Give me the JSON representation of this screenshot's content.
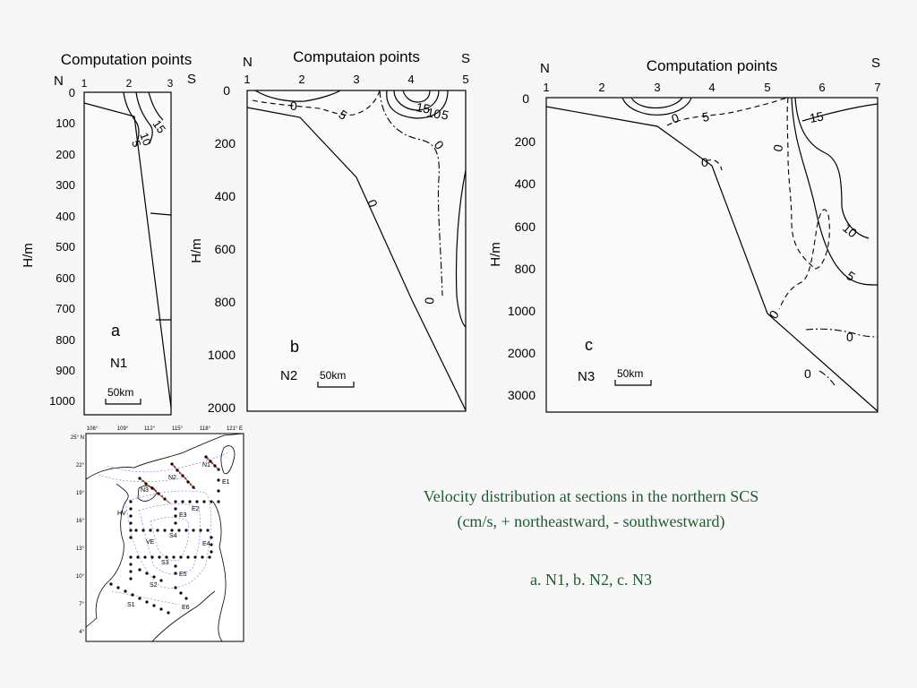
{
  "panels": {
    "a": {
      "title": "Computation points",
      "north": "N",
      "south": "S",
      "xticks": [
        "1",
        "2",
        "3"
      ],
      "yticks": [
        "0",
        "100",
        "200",
        "300",
        "400",
        "500",
        "600",
        "700",
        "800",
        "900",
        "1000"
      ],
      "ylabel": "H/m",
      "letter": "a",
      "section": "N1",
      "scale": "50km",
      "contours": [
        "15",
        "10",
        "5"
      ]
    },
    "b": {
      "title": "Computaion points",
      "north": "N",
      "south": "S",
      "xticks": [
        "1",
        "2",
        "3",
        "4",
        "5"
      ],
      "yticks": [
        "0",
        "200",
        "400",
        "600",
        "800",
        "1000",
        "2000"
      ],
      "ylabel": "H/m",
      "letter": "b",
      "section": "N2",
      "scale": "50km",
      "contours": [
        "0",
        "5",
        "15",
        "10",
        "5",
        "0",
        "0",
        "0"
      ]
    },
    "c": {
      "title": "Computation points",
      "north": "N",
      "south": "S",
      "xticks": [
        "1",
        "2",
        "3",
        "4",
        "5",
        "6",
        "7"
      ],
      "yticks": [
        "0",
        "200",
        "400",
        "600",
        "800",
        "1000",
        "2000",
        "3000"
      ],
      "ylabel": "H/m",
      "letter": "c",
      "section": "N3",
      "scale": "50km",
      "contours": [
        "0",
        "5",
        "0",
        "15",
        "0",
        "10",
        "5",
        "0",
        "0",
        "0"
      ]
    }
  },
  "map": {
    "lon_labels": [
      "106°",
      "109°",
      "112°",
      "115°",
      "118°",
      "121° E"
    ],
    "lat_labels": [
      "25° N",
      "22°",
      "19°",
      "16°",
      "13°",
      "10°",
      "7°",
      "4°"
    ],
    "sections": [
      "N1",
      "N2",
      "N3",
      "E1",
      "E2",
      "E3",
      "HV",
      "S4",
      "VE",
      "E4",
      "S3",
      "E5",
      "S2",
      "S1",
      "E6"
    ]
  },
  "caption": {
    "line1": "Velocity distribution at sections in the northern SCS",
    "line2": "(cm/s,    + northeastward, - southwestward)",
    "line3": "a. N1,   b. N2,   c. N3"
  },
  "colors": {
    "caption": "#1f5a33",
    "section_red": "#c0392b",
    "map_contour": "#6a7bd8"
  }
}
